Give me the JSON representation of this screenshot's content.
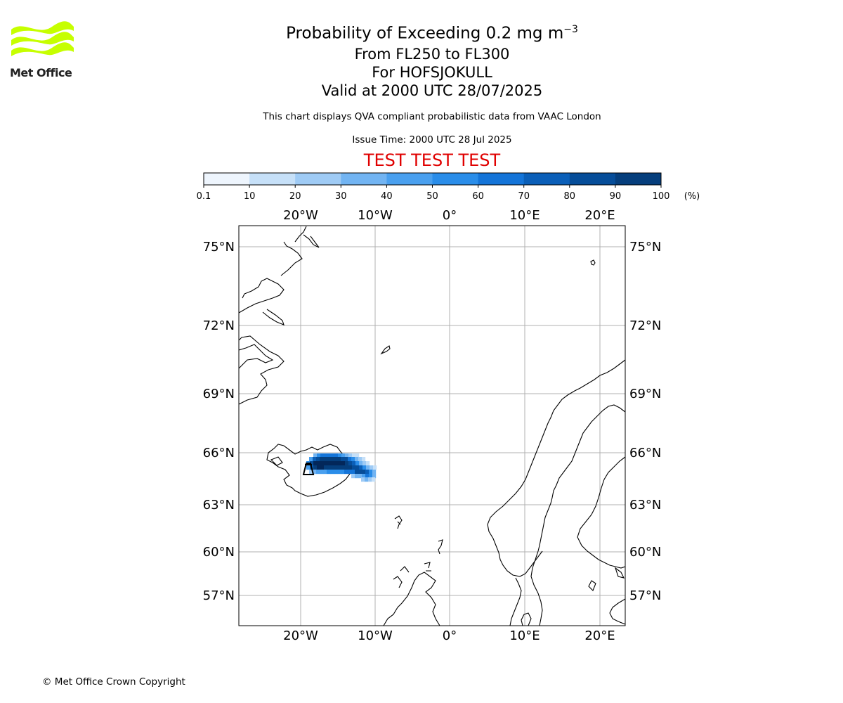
{
  "logo": {
    "text": "Met Office"
  },
  "title": {
    "line1_main": "Probability of Exceeding 0.2 mg m",
    "line1_sup": "−3",
    "line2": "From FL250 to FL300",
    "line3": "For HOFSJOKULL",
    "line4": "Valid at 2000 UTC 28/07/2025"
  },
  "disclaimer": "This chart displays QVA compliant probabilistic data from VAAC London",
  "issue_time": "Issue Time: 2000 UTC 28 Jul 2025",
  "test_banner": "TEST TEST TEST",
  "colorbar": {
    "tick_labels": [
      "0.1",
      "10",
      "20",
      "30",
      "40",
      "50",
      "60",
      "70",
      "80",
      "90",
      "100"
    ],
    "unit": "(%)",
    "colors": [
      "#eef5fd",
      "#c6e0f8",
      "#9fcbf5",
      "#72b4f2",
      "#4aa0ef",
      "#2a8de9",
      "#1474d8",
      "#0b5fb8",
      "#064d99",
      "#053e7c",
      "#03275a"
    ]
  },
  "map": {
    "lon_labels": [
      "20°W",
      "10°W",
      "0°",
      "10°E",
      "20°E"
    ],
    "lat_labels": [
      "75°N",
      "72°N",
      "69°N",
      "66°N",
      "63°N",
      "60°N",
      "57°N"
    ],
    "volcano": "HOFSJOKULL",
    "coast_color": "#000000",
    "grid_color": "#b0b0b0"
  },
  "copyright": "© Met Office Crown Copyright"
}
